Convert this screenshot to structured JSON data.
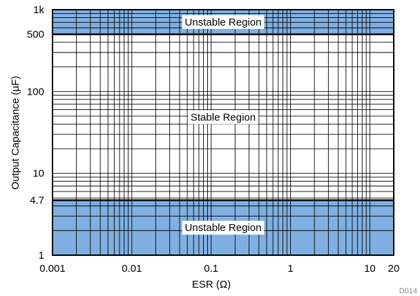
{
  "chart_data": {
    "type": "area",
    "title": "",
    "xlabel": "ESR (Ω)",
    "ylabel": "Output Capacitance (µF)",
    "x_scale": "log",
    "y_scale": "log",
    "xlim": [
      0.001,
      20
    ],
    "ylim": [
      1,
      1000
    ],
    "grid": true,
    "x_ticks": [
      {
        "value": 0.001,
        "label": "0.001"
      },
      {
        "value": 0.01,
        "label": "0.01"
      },
      {
        "value": 0.1,
        "label": "0.1"
      },
      {
        "value": 1,
        "label": "1"
      },
      {
        "value": 10,
        "label": "10"
      },
      {
        "value": 20,
        "label": "20"
      }
    ],
    "y_ticks": [
      {
        "value": 1,
        "label": "1"
      },
      {
        "value": 4.7,
        "label": "4.7"
      },
      {
        "value": 10,
        "label": "10"
      },
      {
        "value": 100,
        "label": "100"
      },
      {
        "value": 500,
        "label": "500"
      },
      {
        "value": 1000,
        "label": "1k"
      }
    ],
    "regions": [
      {
        "label": "Unstable Region",
        "y_range": [
          500,
          1000
        ],
        "shaded": true,
        "color": "#7fb0e1"
      },
      {
        "label": "Stable Region",
        "y_range": [
          4.7,
          500
        ],
        "shaded": false,
        "color": "#ffffff"
      },
      {
        "label": "Unstable Region",
        "y_range": [
          1,
          4.7
        ],
        "shaded": true,
        "color": "#7fb0e1"
      }
    ],
    "footnote": "D014"
  }
}
